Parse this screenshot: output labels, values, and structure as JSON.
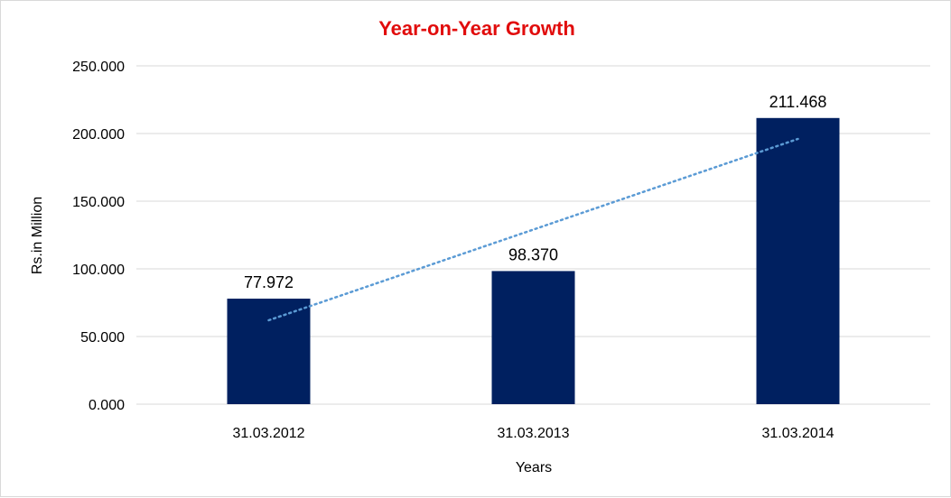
{
  "chart_data": {
    "type": "bar",
    "title": "Year-on-Year Growth",
    "xlabel": "Years",
    "ylabel": "Rs.in Million",
    "categories": [
      "31.03.2012",
      "31.03.2013",
      "31.03.2014"
    ],
    "values": [
      77.972,
      98.37,
      211.468
    ],
    "value_labels": [
      "77.972",
      "98.370",
      "211.468"
    ],
    "ylim": [
      0,
      250
    ],
    "yticks": [
      0,
      50,
      100,
      150,
      200,
      250
    ],
    "ytick_labels": [
      "0.000",
      "50.000",
      "100.000",
      "150.000",
      "200.000",
      "250.000"
    ],
    "grid": true,
    "legend": "none",
    "trendline": {
      "type": "linear",
      "style": "dotted",
      "start_value": 62,
      "end_value": 196
    },
    "colors": {
      "bar": "#002060",
      "trendline": "#5b9bd5",
      "title": "#e10c0c",
      "grid": "#d9d9d9"
    }
  }
}
